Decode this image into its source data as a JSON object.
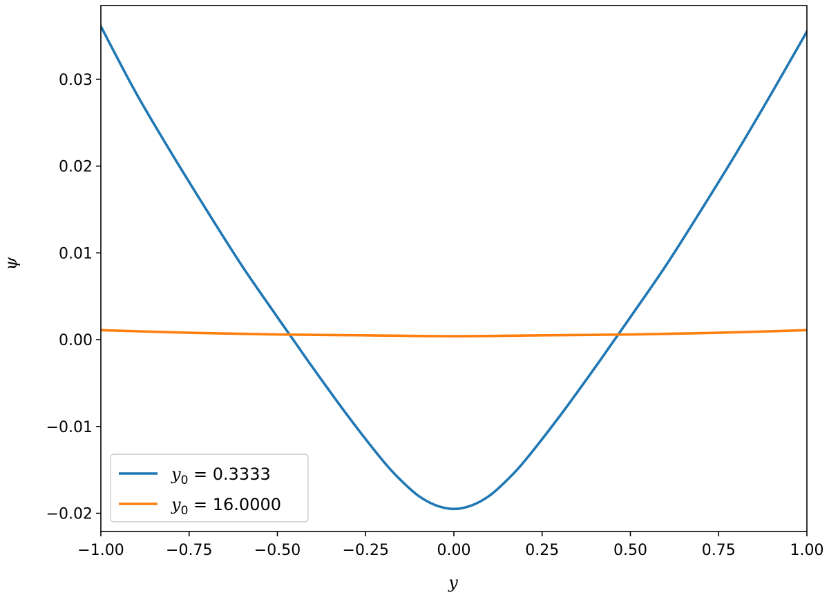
{
  "chart_data": {
    "type": "line",
    "xlabel": "y",
    "ylabel": "ψ",
    "xlim": [
      -1.0,
      1.0
    ],
    "ylim": [
      -0.0221,
      0.0385
    ],
    "xticks": [
      -1.0,
      -0.75,
      -0.5,
      -0.25,
      0.0,
      0.25,
      0.5,
      0.75,
      1.0
    ],
    "xtick_labels": [
      "−1.00",
      "−0.75",
      "−0.50",
      "−0.25",
      "0.00",
      "0.25",
      "0.50",
      "0.75",
      "1.00"
    ],
    "yticks": [
      -0.02,
      -0.01,
      0.0,
      0.01,
      0.02,
      0.03
    ],
    "ytick_labels": [
      "−0.02",
      "−0.01",
      "0.00",
      "0.01",
      "0.02",
      "0.03"
    ],
    "grid": false,
    "legend_position": "lower-left",
    "series": [
      {
        "name": "y0 = 0.3333",
        "legend_var": "y",
        "legend_sub": "0",
        "legend_rest": " = 0.3333",
        "color": "#1f77b4",
        "x": [
          -1.0,
          -0.9,
          -0.8,
          -0.7,
          -0.6,
          -0.5,
          -0.45,
          -0.4,
          -0.3,
          -0.2,
          -0.15,
          -0.1,
          -0.05,
          0.0,
          0.05,
          0.1,
          0.15,
          0.2,
          0.3,
          0.4,
          0.45,
          0.5,
          0.6,
          0.7,
          0.8,
          0.9,
          1.0
        ],
        "y": [
          0.0361,
          0.0284,
          0.0215,
          0.0149,
          0.0085,
          0.0026,
          -0.0003,
          -0.0032,
          -0.0088,
          -0.014,
          -0.0162,
          -0.018,
          -0.0191,
          -0.0195,
          -0.0191,
          -0.018,
          -0.0162,
          -0.014,
          -0.0088,
          -0.0032,
          -0.0003,
          0.0026,
          0.0085,
          0.0149,
          0.0215,
          0.0284,
          0.0355
        ]
      },
      {
        "name": "y0 = 16.0000",
        "legend_var": "y",
        "legend_sub": "0",
        "legend_rest": " = 16.0000",
        "color": "#ff7f0e",
        "x": [
          -1.0,
          -0.75,
          -0.5,
          -0.25,
          0.0,
          0.25,
          0.5,
          0.75,
          1.0
        ],
        "y": [
          0.0011,
          0.0008,
          0.0006,
          0.0005,
          0.0004,
          0.0005,
          0.0006,
          0.0008,
          0.0011
        ]
      }
    ]
  }
}
